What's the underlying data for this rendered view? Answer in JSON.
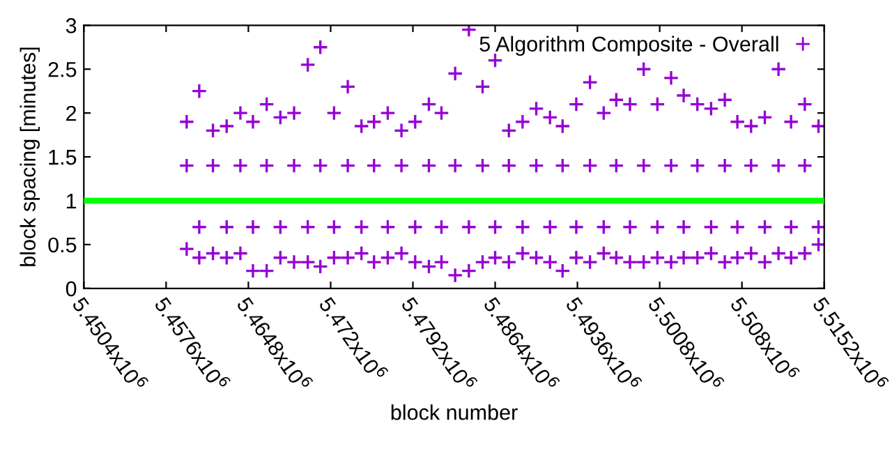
{
  "chart_data": {
    "type": "scatter",
    "xlabel": "block number",
    "ylabel": "block spacing [minutes]",
    "xlim": [
      5450400,
      5515200
    ],
    "xticks": [
      {
        "value": 5450400,
        "label": "5.4504x10$^{6}$"
      },
      {
        "value": 5457600,
        "label": "5.4576x10$^{6}$"
      },
      {
        "value": 5464800,
        "label": "5.4648x10$^{6}$"
      },
      {
        "value": 5472000,
        "label": "5.472x10$^{6}$"
      },
      {
        "value": 5479200,
        "label": "5.4792x10$^{6}$"
      },
      {
        "value": 5486400,
        "label": "5.4864x10$^{6}$"
      },
      {
        "value": 5493600,
        "label": "5.4936x10$^{6}$"
      },
      {
        "value": 5500800,
        "label": "5.5008x10$^{6}$"
      },
      {
        "value": 5508000,
        "label": "5.508x10$^{6}$"
      },
      {
        "value": 5515200,
        "label": "5.5152x10$^{6}$"
      }
    ],
    "ylim": [
      0,
      3
    ],
    "yticks": [
      0,
      0.5,
      1,
      1.5,
      2,
      2.5,
      3
    ],
    "grid": false,
    "legend": "top right",
    "marker": "cross",
    "ref_lines": [
      {
        "axis": "y",
        "value": 1,
        "color": "#00ff00"
      }
    ],
    "series": [
      {
        "name": "5 Algorithm Composite - Overall",
        "color": "#9400d3",
        "x": [
          5459400,
          5460500,
          5461700,
          5462900,
          5464100,
          5465200,
          5466400,
          5467600,
          5468800,
          5470000,
          5471100,
          5472300,
          5473500,
          5474700,
          5475800,
          5477000,
          5478200,
          5479400,
          5480600,
          5481700,
          5482900,
          5484100,
          5485300,
          5486400,
          5487600,
          5488800,
          5490000,
          5491200,
          5492300,
          5493500,
          5494700,
          5495900,
          5497000,
          5498200,
          5499400,
          5500600,
          5501800,
          5502900,
          5504100,
          5505300,
          5506500,
          5507600,
          5508800,
          5510000,
          5511200,
          5512300,
          5513500,
          5514700,
          5459400,
          5460500,
          5461700,
          5462900,
          5464100,
          5465200,
          5466400,
          5467600,
          5468800,
          5470000,
          5471100,
          5472300,
          5473500,
          5474700,
          5475800,
          5477000,
          5478200,
          5479400,
          5480600,
          5481700,
          5482900,
          5484100,
          5485300,
          5486400,
          5487600,
          5488800,
          5490000,
          5491200,
          5492300,
          5493500,
          5494700,
          5495900,
          5497000,
          5498200,
          5499400,
          5500600,
          5501800,
          5502900,
          5504100,
          5505300,
          5506500,
          5507600,
          5508800,
          5510000,
          5511200,
          5512300,
          5513500,
          5514700,
          5459400,
          5460500,
          5461700,
          5462900,
          5464100,
          5465200,
          5466400,
          5467600,
          5468800,
          5470000,
          5471100,
          5472300,
          5473500,
          5474700,
          5475800,
          5477000,
          5478200,
          5479400,
          5480600,
          5481700,
          5482900,
          5484100,
          5485300,
          5486400,
          5487600,
          5488800,
          5490000,
          5491200,
          5492300,
          5493500,
          5494700,
          5495900,
          5497000,
          5498200,
          5499400,
          5500600,
          5501800,
          5502900,
          5504100,
          5505300,
          5506500,
          5507600,
          5508800,
          5510000,
          5511200,
          5512300,
          5513500,
          5514700
        ],
        "values": [
          1.9,
          2.25,
          1.8,
          1.85,
          2.0,
          1.9,
          2.1,
          1.95,
          2.0,
          2.55,
          2.75,
          2.0,
          2.3,
          1.85,
          1.9,
          2.0,
          1.8,
          1.9,
          2.1,
          2.0,
          2.45,
          2.95,
          2.3,
          2.6,
          1.8,
          1.9,
          2.05,
          1.95,
          1.85,
          2.1,
          2.35,
          2.0,
          2.15,
          2.1,
          2.5,
          2.1,
          2.4,
          2.2,
          2.1,
          2.05,
          2.15,
          1.9,
          1.85,
          1.95,
          2.5,
          1.9,
          2.1,
          1.85,
          0.45,
          0.35,
          0.4,
          0.35,
          0.4,
          0.2,
          0.2,
          0.35,
          0.3,
          0.3,
          0.25,
          0.35,
          0.35,
          0.4,
          0.3,
          0.35,
          0.4,
          0.3,
          0.25,
          0.3,
          0.15,
          0.2,
          0.3,
          0.35,
          0.3,
          0.4,
          0.35,
          0.3,
          0.2,
          0.35,
          0.3,
          0.4,
          0.35,
          0.3,
          0.3,
          0.35,
          0.3,
          0.35,
          0.35,
          0.4,
          0.3,
          0.35,
          0.4,
          0.3,
          0.4,
          0.35,
          0.4,
          0.5,
          1.4,
          0.7,
          1.4,
          0.7,
          1.4,
          0.7,
          1.4,
          0.7,
          1.4,
          0.7,
          1.4,
          0.7,
          1.4,
          0.7,
          1.4,
          0.7,
          1.4,
          0.7,
          1.4,
          0.7,
          1.4,
          0.7,
          1.4,
          0.7,
          1.4,
          0.7,
          1.4,
          0.7,
          1.4,
          0.7,
          1.4,
          0.7,
          1.4,
          0.7,
          1.4,
          0.7,
          1.4,
          0.7,
          1.4,
          0.7,
          1.4,
          0.7,
          1.4,
          0.7,
          1.4,
          0.7,
          1.4,
          0.7
        ]
      }
    ]
  }
}
